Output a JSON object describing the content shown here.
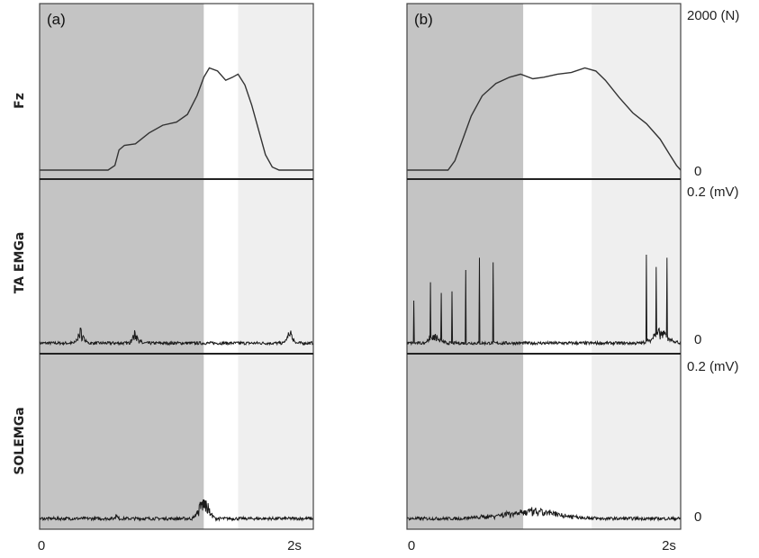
{
  "chart_data": {
    "type": "line",
    "x_ticks": [
      "0",
      "2s"
    ],
    "row_labels": [
      "Fz",
      "TA EMGa",
      "SOLEMGa"
    ],
    "row_scales": [
      {
        "top": "2000 (N)",
        "bottom": "0"
      },
      {
        "top": "0.2 (mV)",
        "bottom": "0"
      },
      {
        "top": "0.2 (mV)",
        "bottom": "0"
      }
    ],
    "xlim": [
      0,
      2
    ],
    "panels": [
      {
        "label": "(a)",
        "phase_bounds": [
          1.2,
          1.45
        ],
        "fz": [
          [
            0,
            0
          ],
          [
            0.5,
            0
          ],
          [
            0.55,
            0.03
          ],
          [
            0.58,
            0.13
          ],
          [
            0.62,
            0.16
          ],
          [
            0.7,
            0.17
          ],
          [
            0.8,
            0.24
          ],
          [
            0.9,
            0.29
          ],
          [
            1.0,
            0.31
          ],
          [
            1.08,
            0.36
          ],
          [
            1.15,
            0.48
          ],
          [
            1.2,
            0.6
          ],
          [
            1.24,
            0.66
          ],
          [
            1.3,
            0.64
          ],
          [
            1.36,
            0.58
          ],
          [
            1.41,
            0.6
          ],
          [
            1.45,
            0.62
          ],
          [
            1.5,
            0.55
          ],
          [
            1.55,
            0.42
          ],
          [
            1.6,
            0.26
          ],
          [
            1.65,
            0.1
          ],
          [
            1.7,
            0.02
          ],
          [
            1.75,
            0
          ],
          [
            2.0,
            0
          ]
        ],
        "ta_bursts": [
          [
            0.3,
            0.03,
            0.06
          ],
          [
            0.7,
            0.03,
            0.05
          ],
          [
            1.83,
            0.03,
            0.05
          ]
        ],
        "sol_bursts": [
          [
            0.56,
            0.01,
            0.03
          ],
          [
            1.2,
            0.05,
            0.09
          ]
        ]
      },
      {
        "label": "(b)",
        "phase_bounds": [
          0.85,
          1.35
        ],
        "fz": [
          [
            0,
            0
          ],
          [
            0.3,
            0
          ],
          [
            0.35,
            0.06
          ],
          [
            0.4,
            0.18
          ],
          [
            0.47,
            0.35
          ],
          [
            0.55,
            0.48
          ],
          [
            0.65,
            0.56
          ],
          [
            0.75,
            0.6
          ],
          [
            0.83,
            0.62
          ],
          [
            0.92,
            0.59
          ],
          [
            1.0,
            0.6
          ],
          [
            1.1,
            0.62
          ],
          [
            1.2,
            0.63
          ],
          [
            1.3,
            0.66
          ],
          [
            1.38,
            0.64
          ],
          [
            1.45,
            0.58
          ],
          [
            1.55,
            0.47
          ],
          [
            1.65,
            0.37
          ],
          [
            1.75,
            0.3
          ],
          [
            1.85,
            0.2
          ],
          [
            1.92,
            0.1
          ],
          [
            1.97,
            0.03
          ],
          [
            2.0,
            0
          ]
        ],
        "ta_spikes": [
          [
            0.05,
            0.3
          ],
          [
            0.17,
            0.42
          ],
          [
            0.25,
            0.35
          ],
          [
            0.33,
            0.36
          ],
          [
            0.43,
            0.5
          ],
          [
            0.53,
            0.58
          ],
          [
            0.63,
            0.55
          ],
          [
            1.75,
            0.6
          ],
          [
            1.82,
            0.52
          ],
          [
            1.9,
            0.58
          ]
        ],
        "ta_bursts": [
          [
            0.2,
            0.05,
            0.04
          ],
          [
            1.85,
            0.08,
            0.06
          ]
        ],
        "sol_bursts": [
          [
            0.9,
            0.3,
            0.04
          ]
        ]
      }
    ]
  }
}
